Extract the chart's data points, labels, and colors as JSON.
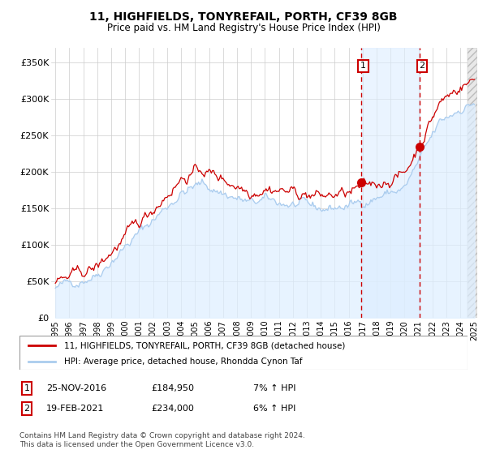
{
  "title": "11, HIGHFIELDS, TONYREFAIL, PORTH, CF39 8GB",
  "subtitle": "Price paid vs. HM Land Registry's House Price Index (HPI)",
  "ylabel_ticks": [
    "£0",
    "£50K",
    "£100K",
    "£150K",
    "£200K",
    "£250K",
    "£300K",
    "£350K"
  ],
  "ytick_values": [
    0,
    50000,
    100000,
    150000,
    200000,
    250000,
    300000,
    350000
  ],
  "ylim": [
    0,
    370000
  ],
  "sale1_price": 184950,
  "sale1_date": "25-NOV-2016",
  "sale1_year": 2016.9,
  "sale1_hpi": "7% ↑ HPI",
  "sale2_price": 234000,
  "sale2_date": "19-FEB-2021",
  "sale2_year": 2021.1,
  "sale2_hpi": "6% ↑ HPI",
  "line1_color": "#cc0000",
  "line2_color": "#aaccee",
  "line2_fill_color": "#ddeeff",
  "vline_color": "#cc0000",
  "vline_region_color": "#ddeeff",
  "legend_line1": "11, HIGHFIELDS, TONYREFAIL, PORTH, CF39 8GB (detached house)",
  "legend_line2": "HPI: Average price, detached house, Rhondda Cynon Taf",
  "footer": "Contains HM Land Registry data © Crown copyright and database right 2024.\nThis data is licensed under the Open Government Licence v3.0.",
  "background_color": "#ffffff",
  "grid_color": "#cccccc"
}
